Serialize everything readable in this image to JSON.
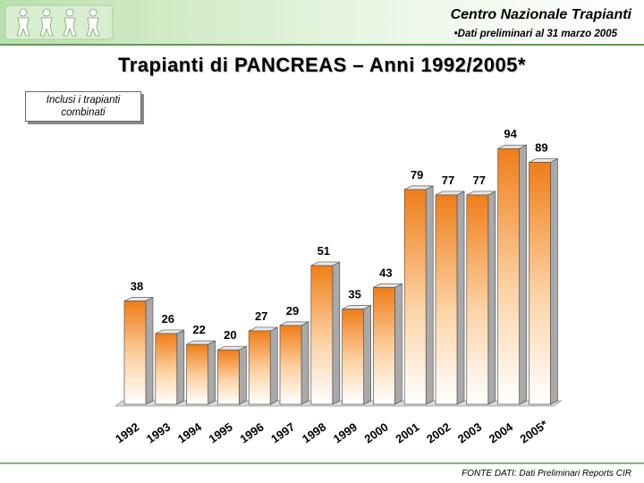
{
  "header": {
    "org": "Centro Nazionale Trapianti",
    "subtitle": "•Dati preliminari al 31 marzo 2005"
  },
  "title": "Trapianti di PANCREAS – Anni 1992/2005*",
  "note": "Inclusi i trapianti combinati",
  "source": "FONTE DATI: Dati Preliminari Reports CIR",
  "colors": {
    "bar_light": "#ffffff",
    "bar_dark": "#f07d18",
    "bar_side": "#9a9a9a",
    "header_green": "#b9dfae"
  },
  "chart_data": {
    "type": "bar",
    "categories": [
      "1992",
      "1993",
      "1994",
      "1995",
      "1996",
      "1997",
      "1998",
      "1999",
      "2000",
      "2001",
      "2002",
      "2003",
      "2004",
      "2005*"
    ],
    "values": [
      38,
      26,
      22,
      20,
      27,
      29,
      51,
      35,
      43,
      79,
      77,
      77,
      94,
      89
    ],
    "title": "Trapianti di PANCREAS – Anni 1992/2005*",
    "xlabel": "",
    "ylabel": "",
    "ylim": [
      0,
      100
    ],
    "grid": false,
    "data_labels": true
  }
}
